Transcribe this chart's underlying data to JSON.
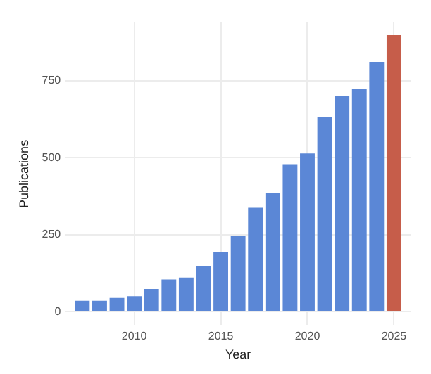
{
  "chart_data": {
    "type": "bar",
    "xlabel": "Year",
    "ylabel": "Publications",
    "x": [
      2007,
      2008,
      2009,
      2010,
      2011,
      2012,
      2013,
      2014,
      2015,
      2016,
      2017,
      2018,
      2019,
      2020,
      2021,
      2022,
      2023,
      2024,
      2025
    ],
    "values": [
      36,
      36,
      45,
      51,
      74,
      105,
      111,
      147,
      194,
      247,
      338,
      385,
      479,
      514,
      633,
      702,
      724,
      811,
      898
    ],
    "colors": [
      "#5b87d6",
      "#5b87d6",
      "#5b87d6",
      "#5b87d6",
      "#5b87d6",
      "#5b87d6",
      "#5b87d6",
      "#5b87d6",
      "#5b87d6",
      "#5b87d6",
      "#5b87d6",
      "#5b87d6",
      "#5b87d6",
      "#5b87d6",
      "#5b87d6",
      "#5b87d6",
      "#5b87d6",
      "#5b87d6",
      "#c65d4a"
    ],
    "xlim": [
      2006,
      2026
    ],
    "xticks": [
      2010,
      2015,
      2020,
      2025
    ],
    "ylim": [
      -45,
      940
    ],
    "yticks": [
      0,
      250,
      500,
      750
    ],
    "grid": true
  }
}
